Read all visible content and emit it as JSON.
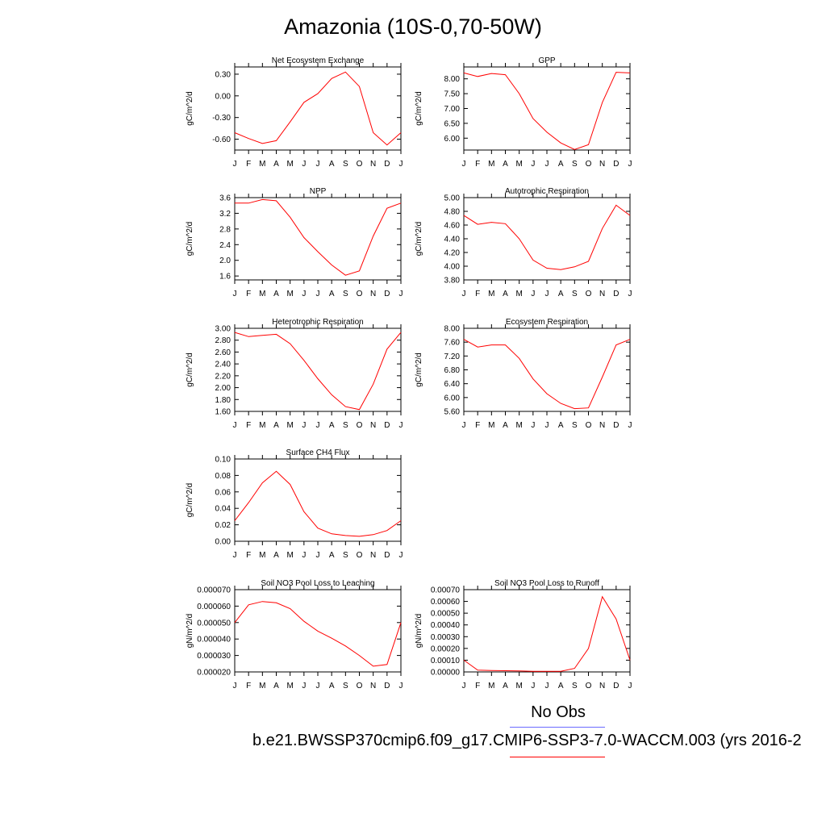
{
  "title": "Amazonia (10S-0,70-50W)",
  "legend": {
    "obs_label": "No Obs",
    "obs_color": "#6b6bff",
    "case_label": "b.e21.BWSSP370cmip6.f09_g17.CMIP6-SSP3-7.0-WACCM.003 (yrs 2016-2",
    "case_color": "#ff0000"
  },
  "chart_data": [
    {
      "type": "line",
      "title": "Net Ecosystem Exchange",
      "ylabel": "gC/m^2/d",
      "categories": [
        "J",
        "F",
        "M",
        "A",
        "M",
        "J",
        "J",
        "A",
        "S",
        "O",
        "N",
        "D",
        "J"
      ],
      "ylim": [
        -0.75,
        0.4
      ],
      "yticks": [
        0.3,
        0.0,
        -0.3,
        -0.6
      ],
      "ytick_labels": [
        "0.30",
        "0.00",
        "-0.30",
        "-0.60"
      ],
      "series": [
        {
          "color": "#ff0000",
          "values": [
            -0.51,
            -0.59,
            -0.66,
            -0.62,
            -0.36,
            -0.09,
            0.03,
            0.24,
            0.33,
            0.13,
            -0.51,
            -0.68,
            -0.51
          ]
        }
      ]
    },
    {
      "type": "line",
      "title": "GPP",
      "ylabel": "gC/m^2/d",
      "categories": [
        "J",
        "F",
        "M",
        "A",
        "M",
        "J",
        "J",
        "A",
        "S",
        "O",
        "N",
        "D",
        "J"
      ],
      "ylim": [
        5.6,
        8.4
      ],
      "yticks": [
        8.0,
        7.5,
        7.0,
        6.5,
        6.0
      ],
      "ytick_labels": [
        "8.00",
        "7.50",
        "7.00",
        "6.50",
        "6.00"
      ],
      "series": [
        {
          "color": "#ff0000",
          "values": [
            8.2,
            8.08,
            8.18,
            8.14,
            7.5,
            6.66,
            6.2,
            5.84,
            5.62,
            5.78,
            7.2,
            8.22,
            8.2
          ]
        }
      ]
    },
    {
      "type": "line",
      "title": "NPP",
      "ylabel": "gC/m^2/d",
      "categories": [
        "J",
        "F",
        "M",
        "A",
        "M",
        "J",
        "J",
        "A",
        "S",
        "O",
        "N",
        "D",
        "J"
      ],
      "ylim": [
        1.5,
        3.6
      ],
      "yticks": [
        3.6,
        3.2,
        2.8,
        2.4,
        2.0,
        1.6
      ],
      "ytick_labels": [
        "3.6",
        "3.2",
        "2.8",
        "2.4",
        "2.0",
        "1.6"
      ],
      "series": [
        {
          "color": "#ff0000",
          "values": [
            3.46,
            3.46,
            3.55,
            3.52,
            3.1,
            2.58,
            2.22,
            1.88,
            1.62,
            1.73,
            2.62,
            3.33,
            3.46
          ]
        }
      ]
    },
    {
      "type": "line",
      "title": "Autotrophic Respiration",
      "ylabel": "gC/m^2/d",
      "categories": [
        "J",
        "F",
        "M",
        "A",
        "M",
        "J",
        "J",
        "A",
        "S",
        "O",
        "N",
        "D",
        "J"
      ],
      "ylim": [
        3.8,
        5.0
      ],
      "yticks": [
        5.0,
        4.8,
        4.6,
        4.4,
        4.2,
        4.0,
        3.8
      ],
      "ytick_labels": [
        "5.00",
        "4.80",
        "4.60",
        "4.40",
        "4.20",
        "4.00",
        "3.80"
      ],
      "series": [
        {
          "color": "#ff0000",
          "values": [
            4.74,
            4.61,
            4.64,
            4.62,
            4.4,
            4.09,
            3.97,
            3.95,
            3.99,
            4.07,
            4.55,
            4.89,
            4.74
          ]
        }
      ]
    },
    {
      "type": "line",
      "title": "Heterotrophic Respiration",
      "ylabel": "gC/m^2/d",
      "categories": [
        "J",
        "F",
        "M",
        "A",
        "M",
        "J",
        "J",
        "A",
        "S",
        "O",
        "N",
        "D",
        "J"
      ],
      "ylim": [
        1.6,
        3.0
      ],
      "yticks": [
        3.0,
        2.8,
        2.6,
        2.4,
        2.2,
        2.0,
        1.8,
        1.6
      ],
      "ytick_labels": [
        "3.00",
        "2.80",
        "2.60",
        "2.40",
        "2.20",
        "2.00",
        "1.80",
        "1.60"
      ],
      "series": [
        {
          "color": "#ff0000",
          "values": [
            2.93,
            2.86,
            2.88,
            2.9,
            2.74,
            2.46,
            2.15,
            1.88,
            1.68,
            1.63,
            2.06,
            2.65,
            2.93
          ]
        }
      ]
    },
    {
      "type": "line",
      "title": "Ecosystem Respiration",
      "ylabel": "gC/m^2/d",
      "categories": [
        "J",
        "F",
        "M",
        "A",
        "M",
        "J",
        "J",
        "A",
        "S",
        "O",
        "N",
        "D",
        "J"
      ],
      "ylim": [
        5.6,
        8.0
      ],
      "yticks": [
        8.0,
        7.6,
        7.2,
        6.8,
        6.4,
        6.0,
        5.6
      ],
      "ytick_labels": [
        "8.00",
        "7.60",
        "7.20",
        "6.80",
        "6.40",
        "6.00",
        "5.60"
      ],
      "series": [
        {
          "color": "#ff0000",
          "values": [
            7.68,
            7.46,
            7.52,
            7.52,
            7.13,
            6.54,
            6.11,
            5.83,
            5.68,
            5.7,
            6.59,
            7.52,
            7.68
          ]
        }
      ]
    },
    {
      "type": "line",
      "title": "Surface CH4 Flux",
      "ylabel": "gC/m^2/d",
      "categories": [
        "J",
        "F",
        "M",
        "A",
        "M",
        "J",
        "J",
        "A",
        "S",
        "O",
        "N",
        "D",
        "J"
      ],
      "ylim": [
        0.0,
        0.1
      ],
      "yticks": [
        0.1,
        0.08,
        0.06,
        0.04,
        0.02,
        0.0
      ],
      "ytick_labels": [
        "0.10",
        "0.08",
        "0.06",
        "0.04",
        "0.02",
        "0.00"
      ],
      "series": [
        {
          "color": "#ff0000",
          "values": [
            0.025,
            0.047,
            0.071,
            0.085,
            0.069,
            0.036,
            0.016,
            0.009,
            0.007,
            0.006,
            0.008,
            0.013,
            0.025
          ]
        }
      ]
    },
    {
      "type": "line",
      "title": "Soil NO3 Pool Loss to Leaching",
      "ylabel": "gN/m^2/d",
      "categories": [
        "J",
        "F",
        "M",
        "A",
        "M",
        "J",
        "J",
        "A",
        "S",
        "O",
        "N",
        "D",
        "J"
      ],
      "ylim": [
        2e-05,
        7e-05
      ],
      "yticks": [
        7e-05,
        6e-05,
        5e-05,
        4e-05,
        3e-05,
        2e-05
      ],
      "ytick_labels": [
        "0.000070",
        "0.000060",
        "0.000050",
        "0.000040",
        "0.000030",
        "0.000020"
      ],
      "series": [
        {
          "color": "#ff0000",
          "values": [
            5e-05,
            6.08e-05,
            6.28e-05,
            6.2e-05,
            5.85e-05,
            5.08e-05,
            4.48e-05,
            4.05e-05,
            3.58e-05,
            3e-05,
            2.35e-05,
            2.45e-05,
            5e-05
          ]
        }
      ]
    },
    {
      "type": "line",
      "title": "Soil NO3 Pool Loss to Runoff",
      "ylabel": "gN/m^2/d",
      "categories": [
        "J",
        "F",
        "M",
        "A",
        "M",
        "J",
        "J",
        "A",
        "S",
        "O",
        "N",
        "D",
        "J"
      ],
      "ylim": [
        0.0,
        0.0007
      ],
      "yticks": [
        0.0007,
        0.0006,
        0.0005,
        0.0004,
        0.0003,
        0.0002,
        0.0001,
        0.0
      ],
      "ytick_labels": [
        "0.00070",
        "0.00060",
        "0.00050",
        "0.00040",
        "0.00030",
        "0.00020",
        "0.00010",
        "0.00000"
      ],
      "series": [
        {
          "color": "#ff0000",
          "values": [
            0.0001,
            1.5e-05,
            1.2e-05,
            1e-05,
            8e-06,
            5e-06,
            5e-06,
            5e-06,
            3e-05,
            0.0002,
            0.00064,
            0.00045,
            0.0001
          ]
        }
      ]
    }
  ]
}
